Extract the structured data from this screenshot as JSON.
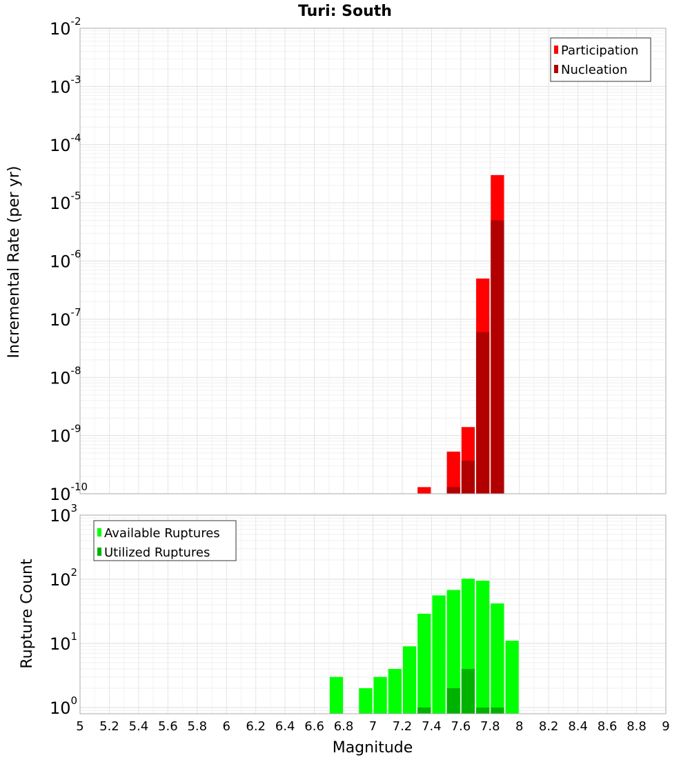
{
  "chart_data": [
    {
      "type": "bar",
      "title": "Turi: South",
      "ylabel": "Incremental Rate (per yr)",
      "xlabel": "",
      "yscale": "log",
      "ylim": [
        1e-10,
        0.01
      ],
      "ytick_exponents": [
        "-10",
        "-9",
        "-8",
        "-7",
        "-6",
        "-5",
        "-4",
        "-3",
        "-2"
      ],
      "ytick_base": "10",
      "xlim": [
        5,
        9
      ],
      "bin_width": 0.1,
      "grid": true,
      "legend_position": "top-right",
      "series": [
        {
          "name": "Participation",
          "color": "#ff0000",
          "x": [
            7.35,
            7.55,
            7.65,
            7.75,
            7.85
          ],
          "values": [
            1.3e-10,
            5.3e-10,
            1.4e-09,
            5e-07,
            3e-05
          ]
        },
        {
          "name": "Nucleation",
          "color": "#b20000",
          "x": [
            7.55,
            7.65,
            7.75,
            7.85
          ],
          "values": [
            1.3e-10,
            3.7e-10,
            6e-08,
            5e-06
          ]
        }
      ]
    },
    {
      "type": "bar",
      "title": "",
      "ylabel": "Rupture Count",
      "xlabel": "Magnitude",
      "yscale": "log",
      "ylim": [
        0.8,
        1000
      ],
      "ytick_exponents": [
        "0",
        "1",
        "2",
        "3"
      ],
      "ytick_base": "10",
      "xlim": [
        5,
        9
      ],
      "xticks": [
        "5",
        "5.2",
        "5.4",
        "5.6",
        "5.8",
        "6",
        "6.2",
        "6.4",
        "6.6",
        "6.8",
        "7",
        "7.2",
        "7.4",
        "7.6",
        "7.8",
        "8",
        "8.2",
        "8.4",
        "8.6",
        "8.8",
        "9"
      ],
      "bin_width": 0.1,
      "grid": true,
      "legend_position": "top-left",
      "series": [
        {
          "name": "Available Ruptures",
          "color": "#00ff00",
          "x": [
            6.75,
            6.95,
            7.05,
            7.15,
            7.25,
            7.35,
            7.45,
            7.55,
            7.65,
            7.75,
            7.85,
            7.95
          ],
          "values": [
            3,
            2,
            3,
            4,
            9,
            29,
            56,
            68,
            102,
            95,
            42,
            11
          ]
        },
        {
          "name": "Utilized Ruptures",
          "color": "#00b200",
          "x": [
            7.35,
            7.55,
            7.65,
            7.75,
            7.85
          ],
          "values": [
            1,
            2,
            4,
            1,
            1
          ]
        }
      ]
    }
  ]
}
